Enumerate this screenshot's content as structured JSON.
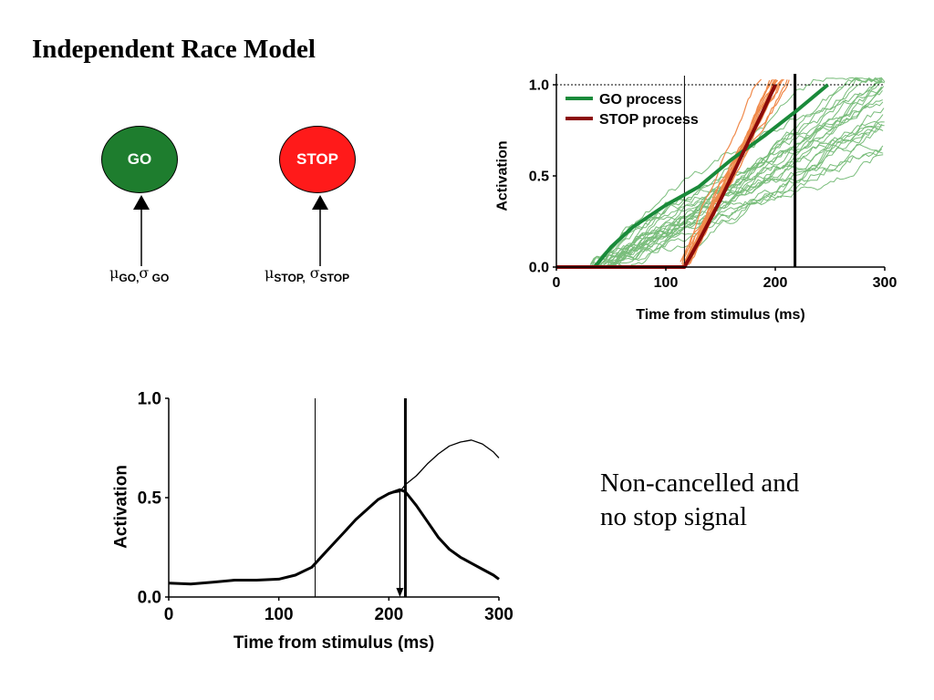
{
  "slide_title": "Independent Race Model",
  "nodes": {
    "go": {
      "label": "GO",
      "color": "#1e7d2e"
    },
    "stop": {
      "label": "STOP",
      "color": "#ff1a1a"
    }
  },
  "params": {
    "go": {
      "mu": "μ",
      "mu_sub": "GO,",
      "sigma": "σ",
      "sigma_sub": " GO"
    },
    "stop": {
      "mu": "μ",
      "mu_sub": "STOP,",
      "sigma": " σ",
      "sigma_sub": "STOP"
    }
  },
  "note": {
    "line1": "Non-cancelled and",
    "line2": "no stop signal"
  },
  "chart_data": [
    {
      "type": "line",
      "xlabel": "Time from stimulus (ms)",
      "ylabel": "Activation",
      "xlim": [
        0,
        300
      ],
      "ylim": [
        0,
        1.0
      ],
      "xticks": [
        "0",
        "100",
        "200",
        "300"
      ],
      "yticks": [
        "0.0",
        "0.5",
        "1.0"
      ],
      "threshold": 1.0,
      "ssd_line_x": 117,
      "ssrt_line_x": 218,
      "legend": [
        {
          "name": "GO process",
          "color": "#1a8a3a"
        },
        {
          "name": "STOP process",
          "color": "#8b0a0a"
        }
      ],
      "series": [
        {
          "name": "GO process",
          "color": "#1a8a3a",
          "x": [
            0,
            35,
            50,
            70,
            100,
            130,
            160,
            190,
            220,
            248
          ],
          "y": [
            0,
            0,
            0.11,
            0.22,
            0.34,
            0.44,
            0.59,
            0.72,
            0.86,
            1.0
          ]
        },
        {
          "name": "STOP process",
          "color": "#8b0a0a",
          "x": [
            0,
            117,
            130,
            150,
            170,
            190,
            200
          ],
          "y": [
            0,
            0,
            0.14,
            0.37,
            0.62,
            0.87,
            1.0
          ]
        }
      ],
      "go_trials_color": "#79bd7b",
      "stop_trials_color": "#f08a4b"
    },
    {
      "type": "line",
      "xlabel": "Time from stimulus (ms)",
      "ylabel": "Activation",
      "xlim": [
        0,
        300
      ],
      "ylim": [
        0,
        1.0
      ],
      "xticks": [
        "0",
        "100",
        "200",
        "300"
      ],
      "yticks": [
        "0.0",
        "0.5",
        "1.0"
      ],
      "ssd_line_x": 133,
      "ssrt_line_x": 215,
      "arrow_x": 210,
      "series": [
        {
          "name": "no stop signal",
          "x": [
            0,
            20,
            40,
            60,
            80,
            100,
            115,
            130,
            140,
            150,
            160,
            170,
            180,
            190,
            200,
            210,
            215,
            225,
            235,
            245,
            255,
            265,
            275,
            285,
            295,
            300
          ],
          "y": [
            0.07,
            0.065,
            0.075,
            0.085,
            0.085,
            0.09,
            0.11,
            0.15,
            0.21,
            0.27,
            0.33,
            0.39,
            0.44,
            0.49,
            0.52,
            0.53,
            0.565,
            0.61,
            0.67,
            0.72,
            0.76,
            0.78,
            0.79,
            0.77,
            0.73,
            0.7
          ]
        },
        {
          "name": "non-cancelled",
          "x": [
            0,
            20,
            40,
            60,
            80,
            100,
            115,
            130,
            140,
            150,
            160,
            170,
            180,
            190,
            200,
            210,
            215,
            225,
            235,
            245,
            255,
            265,
            275,
            285,
            295,
            300
          ],
          "y": [
            0.07,
            0.065,
            0.075,
            0.085,
            0.085,
            0.09,
            0.11,
            0.15,
            0.21,
            0.27,
            0.33,
            0.39,
            0.44,
            0.49,
            0.52,
            0.54,
            0.53,
            0.46,
            0.38,
            0.3,
            0.24,
            0.2,
            0.17,
            0.14,
            0.11,
            0.09
          ]
        }
      ]
    }
  ]
}
